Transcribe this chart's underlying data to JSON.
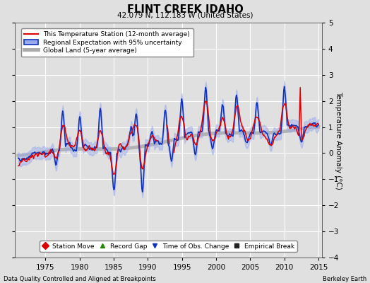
{
  "title": "FLINT CREEK IDAHO",
  "subtitle": "42.079 N, 112.183 W (United States)",
  "xlabel_bottom": "Data Quality Controlled and Aligned at Breakpoints",
  "xlabel_right": "Berkeley Earth",
  "ylabel": "Temperature Anomaly (°C)",
  "xlim": [
    1970.5,
    2015.5
  ],
  "ylim": [
    -4,
    5
  ],
  "yticks": [
    -4,
    -3,
    -2,
    -1,
    0,
    1,
    2,
    3,
    4,
    5
  ],
  "xticks": [
    1975,
    1980,
    1985,
    1990,
    1995,
    2000,
    2005,
    2010,
    2015
  ],
  "bg_color": "#e0e0e0",
  "plot_bg_color": "#e0e0e0",
  "grid_color": "#ffffff",
  "red_color": "#dd0000",
  "blue_color": "#1133bb",
  "blue_fill_color": "#99aaee",
  "gray_color": "#aaaaaa",
  "legend_line_items": [
    {
      "label": "This Temperature Station (12-month average)",
      "color": "#dd0000",
      "lw": 1.5
    },
    {
      "label": "Regional Expectation with 95% uncertainty",
      "color": "#1133bb",
      "lw": 1.5
    },
    {
      "label": "Global Land (5-year average)",
      "color": "#aaaaaa",
      "lw": 3
    }
  ],
  "marker_items": [
    {
      "label": "Station Move",
      "marker": "D",
      "color": "#dd0000"
    },
    {
      "label": "Record Gap",
      "marker": "^",
      "color": "#228800"
    },
    {
      "label": "Time of Obs. Change",
      "marker": "v",
      "color": "#1133bb"
    },
    {
      "label": "Empirical Break",
      "marker": "s",
      "color": "#222222"
    }
  ]
}
